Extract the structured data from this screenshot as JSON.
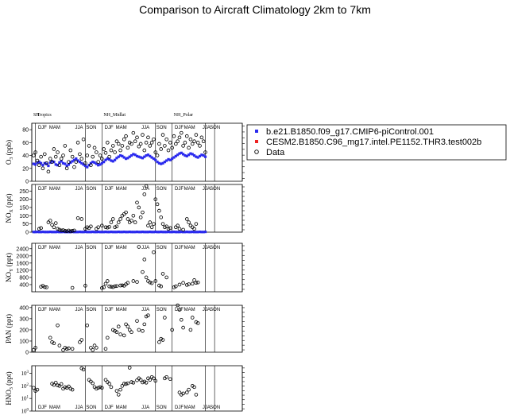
{
  "page": {
    "title": "Comparison to Aircraft Climatology  2km to 7km"
  },
  "chart_data": {
    "type": "scatter",
    "title": "Comparison to Aircraft Climatology  2km to 7km",
    "legend": {
      "placement": "right",
      "entries": [
        {
          "name": "b.e21.B1850.f09_g17.CMIP6-piControl.001",
          "marker": "filled-square",
          "color": "#2a2aee"
        },
        {
          "name": "CESM2.B1850.C96_mg17.intel.PE1152.THR3.test002b",
          "marker": "filled-square",
          "color": "#ee2222"
        },
        {
          "name": "Data",
          "marker": "open-circle",
          "color": "#000000"
        }
      ]
    },
    "region_labels": [
      "SH",
      "Tropics",
      "NH_Midlat",
      "NH_Polar"
    ],
    "season_labels": [
      "DJF",
      "MAM",
      "JJA",
      "SON"
    ],
    "x_range": [
      0,
      114
    ],
    "region_x": [
      0,
      2,
      38,
      76
    ],
    "boundary_x": [
      0,
      2,
      29,
      38,
      67,
      76,
      94,
      99,
      114
    ],
    "season_label_x": [
      3,
      9,
      23,
      29,
      39,
      45,
      59,
      67,
      77,
      82,
      92,
      96
    ],
    "panels": [
      {
        "ylabel": "O3 (ppb)",
        "ylabel_main": "O",
        "ylabel_sub": "3",
        "ylabel_unit": " (ppb)",
        "scale": "linear",
        "ylim": [
          0,
          90
        ],
        "yticks": [
          "0",
          "20",
          "40",
          "60",
          "80"
        ],
        "ytick_values": [
          0,
          20,
          40,
          60,
          80
        ],
        "model_values": [
          27,
          26,
          29,
          30,
          28,
          25,
          28,
          27,
          24,
          29,
          31,
          30,
          26,
          25,
          29,
          31,
          28,
          27,
          24,
          26,
          29,
          31,
          33,
          35,
          32,
          30,
          28,
          26,
          24,
          22,
          25,
          28,
          30,
          29,
          27,
          25,
          26,
          28,
          30,
          33,
          35,
          34,
          32,
          31,
          33,
          36,
          38,
          40,
          39,
          37,
          35,
          36,
          38,
          40,
          42,
          41,
          39,
          38,
          37,
          36,
          38,
          40,
          41,
          39,
          37,
          35,
          33,
          30,
          28,
          27,
          28,
          30,
          32,
          34,
          33,
          35,
          37,
          39,
          41,
          43,
          44,
          42,
          40,
          39,
          41,
          43,
          42,
          40,
          38,
          37,
          39,
          41,
          40,
          38
        ],
        "data_values": [
          40,
          45,
          32,
          25,
          38,
          20,
          42,
          28,
          15,
          35,
          30,
          50,
          38,
          45,
          25,
          35,
          40,
          55,
          20,
          30,
          48,
          38,
          22,
          30,
          60,
          42,
          35,
          65,
          28,
          40,
          55,
          25,
          38,
          52,
          45,
          30,
          40,
          35,
          50,
          44,
          60,
          38,
          48,
          55,
          45,
          62,
          58,
          48,
          55,
          65,
          70,
          52,
          60,
          58,
          75,
          62,
          68,
          54,
          58,
          72,
          48,
          60,
          68,
          55,
          60,
          65,
          45,
          40,
          58,
          50,
          72,
          55,
          65,
          48,
          60,
          52,
          70,
          58,
          62,
          68,
          75,
          55,
          60,
          70,
          52,
          65,
          58,
          62,
          72,
          60,
          55,
          68,
          62,
          45
        ]
      },
      {
        "ylabel": "NOX (ppt)",
        "ylabel_main": "NO",
        "ylabel_sub": "X",
        "ylabel_unit": " (ppt)",
        "scale": "linear",
        "ylim": [
          0,
          290
        ],
        "yticks": [
          "0",
          "50",
          "100",
          "150",
          "200",
          "250"
        ],
        "ytick_values": [
          0,
          50,
          100,
          150,
          200,
          250
        ],
        "model_values": [
          1,
          1,
          2,
          1,
          1,
          2,
          1,
          1,
          1,
          2,
          1,
          1,
          1,
          2,
          1,
          1,
          2,
          1,
          1,
          1,
          1,
          2,
          1,
          1,
          1,
          2,
          1,
          1,
          2,
          1,
          1,
          1,
          2,
          1,
          1,
          2,
          1,
          1,
          1,
          2,
          1,
          1,
          2,
          1,
          1,
          1,
          2,
          1,
          1,
          2,
          1,
          1,
          2,
          1,
          1,
          1,
          2,
          1,
          1,
          2,
          1,
          1,
          1,
          2,
          1,
          1,
          2,
          1,
          1,
          2,
          1,
          1,
          1,
          2,
          1,
          1,
          2,
          1,
          1,
          1,
          2,
          1,
          1,
          2,
          1,
          1,
          2,
          1,
          1,
          1,
          2,
          1,
          1,
          2
        ],
        "data_values": [
          20,
          25,
          60,
          70,
          45,
          30,
          55,
          20,
          15,
          10,
          12,
          8,
          6,
          10,
          5,
          8,
          10,
          85,
          null,
          80,
          20,
          30,
          25,
          35,
          null,
          null,
          20,
          30,
          null,
          40,
          30,
          28,
          32,
          60,
          80,
          30,
          35,
          60,
          80,
          100,
          110,
          120,
          80,
          60,
          70,
          100,
          60,
          180,
          150,
          90,
          120,
          230,
          280,
          40,
          60,
          30,
          50,
          200,
          170,
          130,
          90,
          50,
          30,
          35,
          20,
          25,
          30,
          40,
          20,
          15,
          80,
          60,
          40,
          30,
          20,
          50
        ],
        "data_x": [
          4,
          5,
          9,
          10,
          11,
          12,
          13,
          14,
          15,
          16,
          17,
          18,
          19,
          20,
          21,
          22,
          23,
          25,
          26,
          27,
          29,
          30,
          31,
          32,
          33,
          34,
          35,
          36,
          37,
          38,
          40,
          41,
          42,
          43,
          44,
          45,
          46,
          47,
          48,
          49,
          50,
          51,
          52,
          53,
          54,
          55,
          56,
          57,
          58,
          59,
          60,
          61,
          62,
          63,
          64,
          65,
          66,
          67,
          68,
          69,
          70,
          71,
          72,
          73,
          74,
          75,
          78,
          79,
          80,
          82,
          84,
          85,
          86,
          87,
          88,
          89
        ]
      },
      {
        "ylabel": "NOY (ppt)",
        "ylabel_main": "NO",
        "ylabel_sub": "Y",
        "ylabel_unit": " (ppt)",
        "scale": "linear",
        "ylim": [
          0,
          2700
        ],
        "yticks": [
          "400",
          "800",
          "1200",
          "1600",
          "2000",
          "2400"
        ],
        "ytick_values": [
          400,
          800,
          1200,
          1600,
          2000,
          2400
        ],
        "data_x": [
          5,
          6,
          7,
          8,
          22,
          29,
          38,
          39,
          40,
          41,
          42,
          43,
          44,
          45,
          46,
          48,
          49,
          50,
          51,
          52,
          55,
          57,
          58,
          60,
          61,
          62,
          63,
          64,
          65,
          66,
          67,
          69,
          70,
          71,
          73,
          77,
          78,
          80,
          82,
          84,
          85,
          87,
          88,
          89,
          90
        ],
        "data_values": [
          280,
          330,
          260,
          250,
          220,
          340,
          210,
          250,
          450,
          600,
          300,
          280,
          260,
          310,
          320,
          350,
          360,
          340,
          420,
          500,
          600,
          550,
          2500,
          1100,
          1800,
          800,
          600,
          520,
          480,
          2200,
          600,
          350,
          300,
          1000,
          800,
          250,
          300,
          400,
          500,
          380,
          420,
          450,
          650,
          500,
          520
        ]
      },
      {
        "ylabel": "PAN (ppt)",
        "ylabel_main": "PAN",
        "ylabel_sub": "",
        "ylabel_unit": " (ppt)",
        "scale": "linear",
        "ylim": [
          0,
          420
        ],
        "yticks": [
          "0",
          "100",
          "200",
          "300",
          "400"
        ],
        "ytick_values": [
          0,
          100,
          200,
          300,
          400
        ],
        "data_x": [
          1,
          2,
          10,
          11,
          12,
          14,
          15,
          17,
          18,
          19,
          20,
          22,
          26,
          27,
          30,
          32,
          33,
          34,
          35,
          40,
          41,
          44,
          45,
          46,
          47,
          48,
          50,
          51,
          52,
          53,
          54,
          57,
          58,
          60,
          61,
          62,
          63,
          69,
          70,
          71,
          72,
          76,
          79,
          80,
          81,
          82,
          86,
          87,
          89,
          90
        ],
        "data_values": [
          20,
          40,
          130,
          90,
          80,
          240,
          60,
          20,
          40,
          30,
          35,
          30,
          90,
          110,
          240,
          40,
          20,
          60,
          40,
          30,
          130,
          200,
          190,
          180,
          230,
          160,
          150,
          250,
          230,
          200,
          180,
          280,
          200,
          190,
          250,
          320,
          330,
          90,
          120,
          110,
          310,
          200,
          420,
          380,
          290,
          220,
          200,
          310,
          270,
          260
        ]
      },
      {
        "ylabel": "HNO3 (ppt)",
        "ylabel_main": "HNO",
        "ylabel_sub": "3",
        "ylabel_unit": " (ppt)",
        "scale": "log",
        "ylim": [
          1,
          4000
        ],
        "yticks": [
          "10^0",
          "10^1",
          "10^2",
          "10^3"
        ],
        "ytick_values": [
          1,
          10,
          100,
          1000
        ],
        "data_x": [
          1,
          2,
          3,
          11,
          12,
          13,
          14,
          15,
          16,
          17,
          18,
          19,
          20,
          21,
          22,
          27,
          28,
          31,
          32,
          33,
          34,
          35,
          36,
          37,
          38,
          40,
          41,
          42,
          43,
          46,
          47,
          48,
          49,
          50,
          51,
          52,
          53,
          54,
          55,
          57,
          58,
          59,
          60,
          61,
          62,
          63,
          64,
          65,
          66,
          67,
          72,
          73,
          75,
          80,
          81,
          82,
          84,
          85,
          87,
          88,
          89
        ],
        "data_values": [
          70,
          40,
          50,
          150,
          120,
          180,
          110,
          100,
          140,
          60,
          80,
          70,
          90,
          60,
          50,
          2500,
          2000,
          300,
          220,
          160,
          80,
          60,
          70,
          80,
          70,
          300,
          200,
          150,
          80,
          40,
          20,
          50,
          100,
          150,
          140,
          160,
          2800,
          200,
          180,
          280,
          400,
          300,
          190,
          220,
          180,
          400,
          300,
          500,
          400,
          250,
          400,
          500,
          350,
          30,
          20,
          25,
          30,
          50,
          100,
          80,
          20
        ]
      }
    ]
  }
}
